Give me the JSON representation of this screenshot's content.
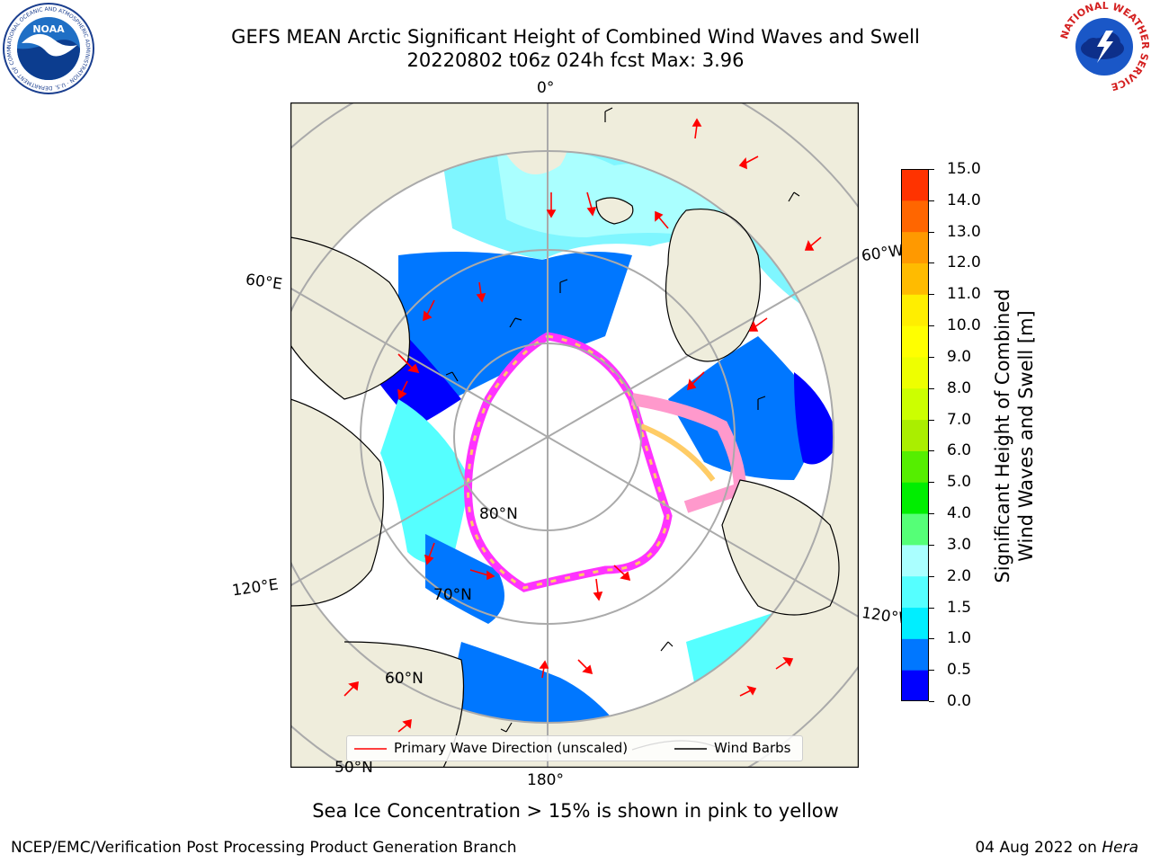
{
  "title_line1": "GEFS MEAN Arctic Significant Height of Combined Wind Waves and Swell",
  "title_line2": "20220802 t06z 024h fcst   Max: 3.96",
  "logos": {
    "left": "noaa-logo",
    "right": "nws-logo",
    "left_text": "NOAA",
    "left_ring_text": "NATIONAL OCEANIC AND ATMOSPHERIC ADMINISTRATION · U.S. DEPARTMENT OF COMMERCE",
    "right_ring_text": "NATIONAL WEATHER SERVICE"
  },
  "map": {
    "projection": "north-polar-stereographic",
    "land_color": "#efeddc",
    "ocean_no_data_color": "#ffffff",
    "grid_color": "#aaaaaa",
    "longitude_labels": [
      "0°",
      "60°E",
      "60°W",
      "120°E",
      "120°W",
      "180°"
    ],
    "latitude_labels": [
      "80°N",
      "70°N",
      "60°N",
      "50°N"
    ],
    "sea_ice_colors": [
      "#ff33ff",
      "#ff99cc",
      "#ffcc66",
      "#ffee88"
    ]
  },
  "colorbar": {
    "label_line1": "Significant Height of Combined",
    "label_line2": "Wind Waves and Swell [m]",
    "ticks": [
      "15.0",
      "14.0",
      "13.0",
      "12.0",
      "11.0",
      "10.0",
      "9.0",
      "8.0",
      "7.0",
      "6.0",
      "5.0",
      "4.0",
      "3.0",
      "2.0",
      "1.5",
      "1.0",
      "0.5",
      "0.0"
    ],
    "levels": [
      0.0,
      0.5,
      1.0,
      1.5,
      2.0,
      3.0,
      4.0,
      5.0,
      6.0,
      7.0,
      8.0,
      9.0,
      10.0,
      11.0,
      12.0,
      13.0,
      14.0,
      15.0
    ],
    "colors": [
      "#0000ff",
      "#0077ff",
      "#00eeff",
      "#55ffff",
      "#aaffff",
      "#55ff77",
      "#00ee00",
      "#55ee00",
      "#aaee00",
      "#ccff00",
      "#eeff00",
      "#ffff00",
      "#ffee00",
      "#ffbb00",
      "#ff9900",
      "#ff6600",
      "#ff3300",
      "#ff0000"
    ]
  },
  "legend": {
    "wave_dir": "Primary Wave Direction (unscaled)",
    "wind_barbs": "Wind Barbs",
    "wave_color": "#ff0000",
    "barb_color": "#000000"
  },
  "footer_note": "Sea Ice Concentration > 15% is shown in pink to yellow",
  "footer_left": "NCEP/EMC/Verification Post Processing Product Generation Branch",
  "footer_right_date": "04 Aug 2022 on ",
  "footer_right_host": "Hera"
}
